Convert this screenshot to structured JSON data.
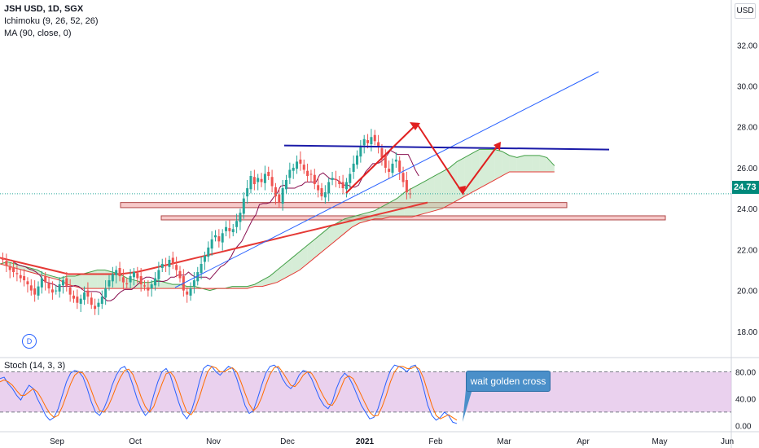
{
  "header": {
    "symbol": "JSH USD, 1D, SGX",
    "indicator_ichimoku": "Ichimoku (9, 26, 52, 26)",
    "indicator_ma": "MA (90, close, 0)",
    "indicator_stoch": "Stoch (14, 3, 3)",
    "currency": "USD",
    "last_price": "24.73",
    "event_badge": "D"
  },
  "annotation": {
    "callout_text": "wait golden cross"
  },
  "colors": {
    "up": "#26a69a",
    "down": "#ef5350",
    "trendline": "#2962ff",
    "resistance": "#1a1aa8",
    "ma": "#e53935",
    "cloud_bull": "#a5d6a7",
    "cloud_bear": "#ef9a9a",
    "stoch_k": "#2962ff",
    "stoch_d": "#ff6d00",
    "stoch_band": "#e1bee7",
    "zone": "#f6c9c9",
    "arrow": "#e02020"
  },
  "chart_data": [
    {
      "type": "candlestick",
      "title": "JSH USD, 1D, SGX",
      "x_labels": [
        "Sep",
        "Oct",
        "Nov",
        "Dec",
        "2021",
        "Feb",
        "Mar",
        "Apr",
        "May",
        "Jun"
      ],
      "y_ticks": [
        18,
        20,
        22,
        24,
        26,
        28,
        30,
        32
      ],
      "y_tick_labels": [
        "18.00",
        "20.00",
        "22.00",
        "24.00",
        "26.00",
        "28.00",
        "30.00",
        "32.00"
      ],
      "y_range": [
        16.8,
        34.2
      ],
      "last_price": 24.73,
      "close": [
        21.5,
        21.2,
        21.0,
        20.9,
        20.8,
        20.6,
        20.5,
        20.3,
        20.0,
        19.8,
        20.2,
        20.6,
        20.4,
        20.1,
        19.9,
        20.0,
        20.3,
        20.5,
        20.2,
        19.8,
        19.6,
        19.4,
        19.6,
        19.9,
        19.7,
        19.3,
        19.1,
        19.4,
        19.7,
        20.1,
        20.5,
        20.8,
        21.0,
        20.7,
        20.4,
        20.3,
        20.7,
        20.9,
        20.6,
        20.3,
        20.2,
        20.0,
        20.3,
        20.6,
        21.0,
        21.3,
        21.2,
        21.5,
        21.3,
        21.0,
        20.6,
        20.0,
        19.8,
        20.1,
        20.5,
        20.9,
        21.3,
        21.7,
        22.1,
        22.5,
        22.7,
        22.4,
        22.8,
        23.1,
        22.9,
        23.0,
        23.4,
        23.8,
        24.5,
        25.0,
        25.6,
        25.2,
        25.5,
        25.3,
        25.7,
        25.6,
        25.1,
        24.6,
        24.3,
        25.0,
        25.4,
        25.9,
        26.0,
        26.3,
        26.2,
        25.9,
        25.6,
        25.7,
        25.2,
        24.9,
        24.6,
        24.8,
        25.3,
        25.5,
        25.4,
        25.2,
        25.0,
        25.3,
        25.7,
        26.2,
        26.6,
        27.0,
        27.4,
        27.2,
        27.5,
        27.3,
        27.0,
        26.5,
        26.0,
        25.8,
        26.2,
        26.4,
        25.8,
        25.3,
        24.8,
        24.7
      ],
      "ichimoku_span_a": [
        21.3,
        21.4,
        21.3,
        21.2,
        21.1,
        21.0,
        20.8,
        20.7,
        20.6,
        20.7,
        20.7,
        20.8,
        20.9,
        21.0,
        21.0,
        20.9,
        20.8,
        20.6,
        20.5,
        20.4,
        20.4,
        20.5,
        20.4,
        20.3,
        20.3,
        20.2,
        20.2,
        20.1,
        20.0,
        20.1,
        20.1,
        20.2,
        20.2,
        20.2,
        20.3,
        20.5,
        20.7,
        21.0,
        21.3,
        21.6,
        21.9,
        22.2,
        22.5,
        22.8,
        23.1,
        23.3,
        23.5,
        23.6,
        23.7,
        23.8,
        23.9,
        24.1,
        24.3,
        24.5,
        24.8,
        25.0,
        25.2,
        25.4,
        25.6,
        25.8,
        26.0,
        26.3,
        26.5,
        26.7,
        26.9,
        26.9,
        26.9,
        26.8,
        26.6,
        26.5,
        26.6,
        26.6,
        26.6,
        26.5,
        26.1
      ],
      "ichimoku_span_b": [
        21.3,
        21.2,
        21.1,
        21.0,
        20.9,
        20.8,
        20.7,
        20.6,
        20.5,
        20.3,
        20.2,
        20.1,
        20.1,
        20.1,
        20.1,
        20.1,
        20.1,
        20.1,
        20.1,
        20.1,
        20.1,
        20.1,
        20.1,
        20.1,
        20.1,
        20.1,
        20.1,
        20.1,
        20.1,
        20.1,
        20.1,
        20.1,
        20.1,
        20.1,
        20.2,
        20.2,
        20.3,
        20.4,
        20.6,
        20.8,
        21.0,
        21.3,
        21.6,
        21.9,
        22.2,
        22.5,
        22.8,
        23.1,
        23.3,
        23.4,
        23.5,
        23.5,
        23.6,
        23.6,
        23.6,
        23.6,
        23.7,
        23.8,
        23.9,
        24.0,
        24.2,
        24.4,
        24.6,
        24.8,
        25.0,
        25.2,
        25.4,
        25.6,
        25.8,
        25.8,
        25.8,
        25.8,
        25.8,
        25.8,
        25.8
      ],
      "ma_90": [
        21.6,
        21.5,
        21.4,
        21.3,
        21.2,
        21.1,
        21.0,
        20.9,
        20.8,
        20.8,
        20.8,
        20.8,
        20.8,
        20.8,
        20.8,
        20.85,
        20.9,
        21.0,
        21.1,
        21.2,
        21.3,
        21.4,
        21.5,
        21.6,
        21.7,
        21.8,
        21.9,
        22.0,
        22.1,
        22.2,
        22.3,
        22.4,
        22.5,
        22.6,
        22.7,
        22.8,
        22.9,
        23.0,
        23.1,
        23.2,
        23.3,
        23.4,
        23.5,
        23.6,
        23.7,
        23.8,
        23.9,
        24.0,
        24.1,
        24.2,
        24.3
      ],
      "trendline": [
        [
          19.5,
          0
        ],
        [
          30.5,
          1
        ]
      ],
      "resistance": 26.85,
      "zones": [
        [
          24.05,
          24.3
        ],
        [
          23.45,
          23.65
        ]
      ]
    },
    {
      "type": "line",
      "title": "Stoch (14, 3, 3)",
      "y_ticks": [
        0,
        40,
        80
      ],
      "y_tick_labels": [
        "0.00",
        "40.00",
        "80.00"
      ],
      "y_range": [
        -8,
        100
      ],
      "band": [
        20,
        80
      ],
      "series": [
        {
          "name": "%K",
          "values": [
            70,
            72,
            62,
            55,
            45,
            38,
            50,
            60,
            55,
            40,
            28,
            15,
            8,
            12,
            25,
            45,
            65,
            78,
            82,
            80,
            72,
            55,
            35,
            20,
            15,
            25,
            40,
            60,
            75,
            85,
            88,
            78,
            60,
            40,
            25,
            15,
            22,
            45,
            65,
            80,
            85,
            75,
            55,
            35,
            18,
            10,
            20,
            40,
            65,
            85,
            90,
            88,
            80,
            75,
            82,
            88,
            85,
            70,
            50,
            30,
            18,
            22,
            40,
            60,
            78,
            88,
            90,
            85,
            70,
            60,
            55,
            62,
            75,
            82,
            80,
            70,
            55,
            40,
            30,
            25,
            35,
            55,
            70,
            78,
            72,
            60,
            45,
            30,
            20,
            10,
            12,
            25,
            45,
            65,
            82,
            90,
            88,
            85,
            80,
            88,
            90,
            78,
            55,
            30,
            15,
            8,
            12,
            20,
            15,
            5,
            3
          ]
        },
        {
          "name": "%D",
          "values": [
            65,
            68,
            65,
            60,
            52,
            45,
            45,
            50,
            55,
            50,
            40,
            28,
            18,
            12,
            15,
            28,
            45,
            62,
            75,
            80,
            78,
            68,
            52,
            35,
            22,
            20,
            28,
            42,
            58,
            72,
            82,
            84,
            76,
            60,
            42,
            28,
            20,
            28,
            45,
            62,
            77,
            80,
            72,
            55,
            36,
            20,
            16,
            25,
            42,
            62,
            80,
            88,
            86,
            80,
            80,
            84,
            86,
            80,
            65,
            48,
            32,
            22,
            28,
            42,
            60,
            76,
            86,
            88,
            80,
            70,
            60,
            58,
            65,
            75,
            80,
            78,
            68,
            54,
            42,
            32,
            30,
            40,
            55,
            70,
            74,
            70,
            58,
            45,
            32,
            20,
            14,
            15,
            28,
            45,
            65,
            80,
            88,
            88,
            85,
            85,
            88,
            84,
            70,
            50,
            30,
            15,
            10,
            13,
            16,
            12,
            8
          ]
        }
      ]
    }
  ]
}
